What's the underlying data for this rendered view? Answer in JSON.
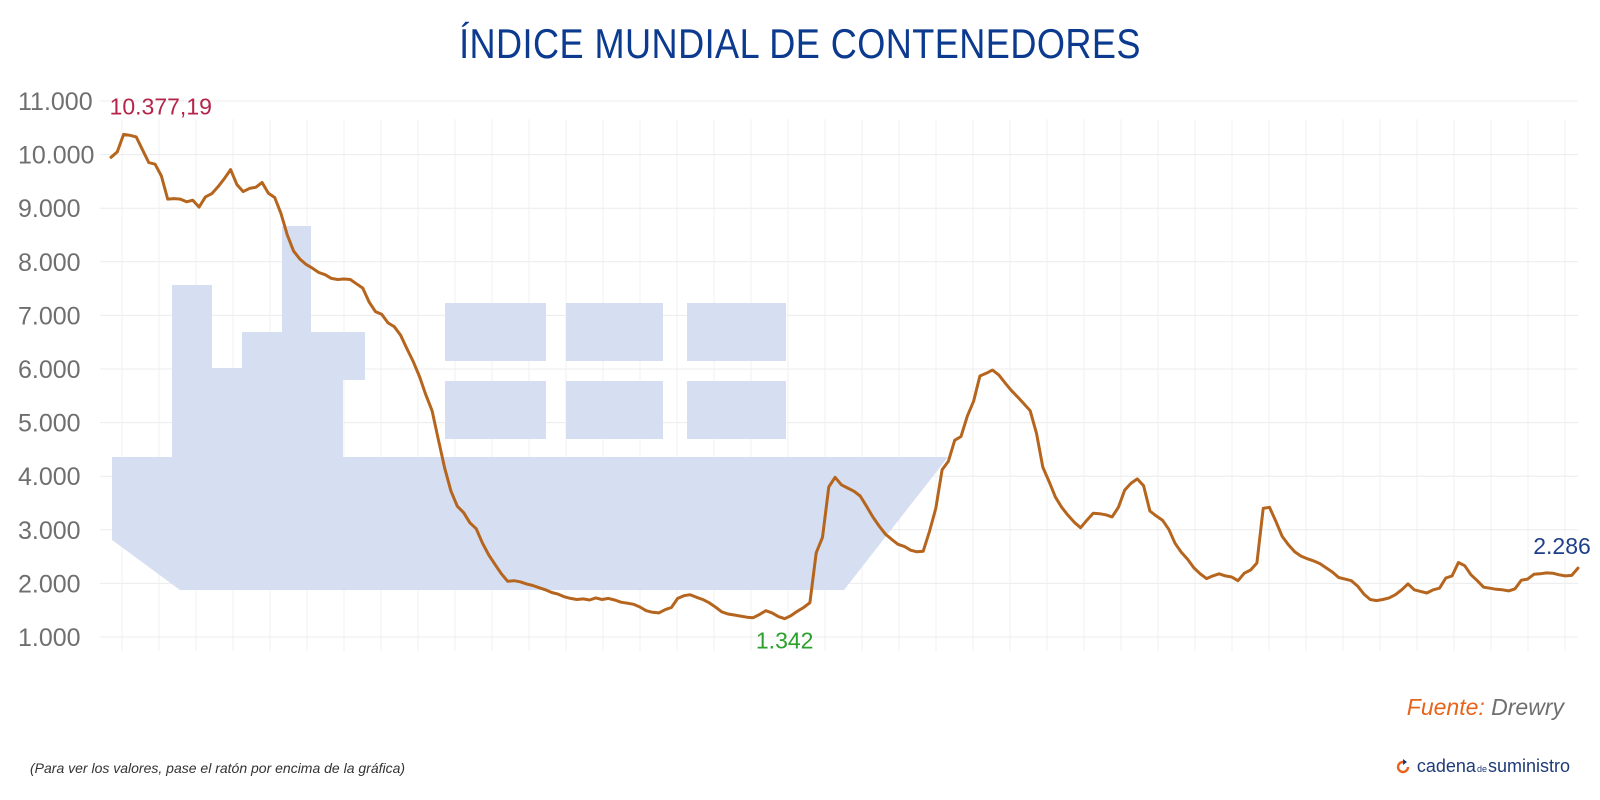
{
  "chart_data": {
    "type": "line",
    "title": "ÍNDICE MUNDIAL DE CONTENEDORES",
    "ylim": [
      1000,
      11000
    ],
    "yticks": [
      "1.000",
      "2.000",
      "3.000",
      "4.000",
      "5.000",
      "6.000",
      "7.000",
      "8.000",
      "9.000",
      "10.000",
      "11.000"
    ],
    "grid": true,
    "line_color": "#b5651d",
    "series": [
      {
        "values": [
          9950,
          10050,
          10377,
          10360,
          10330,
          10090,
          9850,
          9820,
          9600,
          9170,
          9180,
          9170,
          9120,
          9150,
          9020,
          9210,
          9270,
          9400,
          9550,
          9720,
          9440,
          9310,
          9370,
          9390,
          9480,
          9280,
          9200,
          8900,
          8500,
          8200,
          8050,
          7950,
          7880,
          7800,
          7760,
          7690,
          7670,
          7680,
          7670,
          7590,
          7510,
          7250,
          7070,
          7020,
          6860,
          6790,
          6630,
          6380,
          6140,
          5860,
          5520,
          5220,
          4680,
          4150,
          3720,
          3440,
          3320,
          3130,
          3020,
          2750,
          2530,
          2350,
          2180,
          2040,
          2050,
          2030,
          1990,
          1960,
          1920,
          1880,
          1830,
          1800,
          1750,
          1720,
          1700,
          1710,
          1690,
          1730,
          1700,
          1720,
          1690,
          1650,
          1630,
          1610,
          1560,
          1490,
          1460,
          1450,
          1510,
          1550,
          1720,
          1770,
          1790,
          1740,
          1700,
          1640,
          1560,
          1470,
          1430,
          1410,
          1390,
          1370,
          1360,
          1420,
          1490,
          1450,
          1380,
          1342,
          1400,
          1480,
          1550,
          1640,
          2570,
          2860,
          3800,
          3980,
          3840,
          3780,
          3720,
          3630,
          3440,
          3240,
          3070,
          2920,
          2820,
          2730,
          2690,
          2620,
          2590,
          2600,
          2970,
          3400,
          4120,
          4280,
          4670,
          4740,
          5120,
          5400,
          5870,
          5920,
          5980,
          5890,
          5740,
          5600,
          5480,
          5350,
          5220,
          4800,
          4170,
          3900,
          3610,
          3420,
          3270,
          3140,
          3040,
          3180,
          3310,
          3300,
          3280,
          3240,
          3420,
          3740,
          3870,
          3950,
          3820,
          3350,
          3260,
          3180,
          3010,
          2750,
          2580,
          2450,
          2290,
          2180,
          2090,
          2140,
          2180,
          2140,
          2120,
          2050,
          2190,
          2250,
          2380,
          3400,
          3420,
          3160,
          2880,
          2720,
          2590,
          2510,
          2460,
          2420,
          2370,
          2290,
          2210,
          2110,
          2080,
          2050,
          1950,
          1800,
          1700,
          1680,
          1700,
          1730,
          1790,
          1880,
          1990,
          1880,
          1850,
          1820,
          1880,
          1910,
          2100,
          2140,
          2390,
          2330,
          2160,
          2050,
          1930,
          1910,
          1890,
          1880,
          1860,
          1900,
          2060,
          2080,
          2170,
          2180,
          2195,
          2190,
          2160,
          2140,
          2150,
          2286
        ]
      }
    ],
    "annotations": [
      {
        "text": "10.377,19",
        "color": "#b5254a"
      },
      {
        "text": "1.342",
        "color": "#2ca02c"
      },
      {
        "text": "2.286",
        "color": "#1f3f8a"
      }
    ]
  },
  "footer": {
    "source_label": "Fuente:",
    "source_name": "Drewry",
    "note": "(Para ver los valores, pase el ratón por encima de la gráfica)",
    "brand_part1": "cadena",
    "brand_part2": "de",
    "brand_part3": "suministro"
  }
}
